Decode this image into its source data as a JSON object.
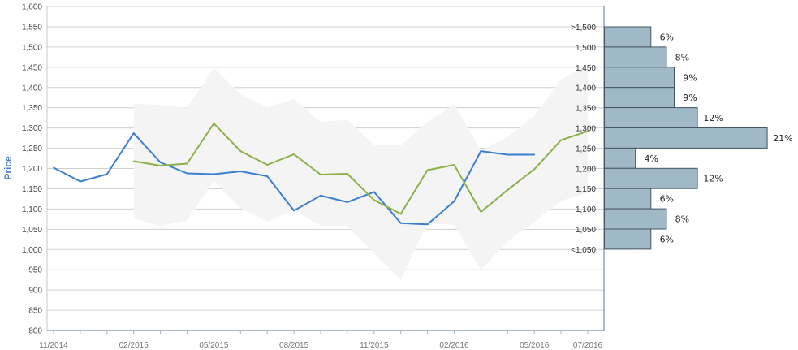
{
  "chart_data": {
    "type": "line",
    "ylabel": "Price",
    "ylim": [
      800,
      1600
    ],
    "y_ticks": [
      "800",
      "850",
      "900",
      "950",
      "1,000",
      "1,050",
      "1,100",
      "1,150",
      "1,200",
      "1,250",
      "1,300",
      "1,350",
      "1,400",
      "1,450",
      "1,500",
      "1,550",
      "1,600"
    ],
    "x_ticks": [
      "11/2014",
      "02/2015",
      "05/2015",
      "08/2015",
      "11/2015",
      "02/2016",
      "05/2016",
      "07/2016"
    ],
    "grid": true,
    "series": [
      {
        "key": "actual",
        "color": "#3a7fd0",
        "x": [
          "11/2014",
          "12/2014",
          "01/2015",
          "02/2015",
          "03/2015",
          "04/2015",
          "05/2015",
          "06/2015",
          "07/2015",
          "08/2015",
          "09/2015",
          "10/2015",
          "11/2015",
          "12/2015",
          "01/2016",
          "02/2016",
          "03/2016",
          "04/2016",
          "05/2016"
        ],
        "values": [
          1202,
          1168,
          1186,
          1287,
          1215,
          1188,
          1186,
          1193,
          1181,
          1096,
          1133,
          1117,
          1142,
          1065,
          1062,
          1119,
          1243,
          1234,
          1234
        ]
      },
      {
        "key": "forecast",
        "color": "#8bb04a",
        "x": [
          "02/2015",
          "03/2015",
          "04/2015",
          "05/2015",
          "06/2015",
          "07/2015",
          "08/2015",
          "09/2015",
          "10/2015",
          "11/2015",
          "12/2015",
          "01/2016",
          "02/2016",
          "03/2016",
          "04/2016",
          "05/2016",
          "06/2016",
          "07/2016"
        ],
        "values": [
          1218,
          1207,
          1212,
          1311,
          1243,
          1209,
          1235,
          1185,
          1187,
          1122,
          1088,
          1196,
          1209,
          1093,
          1147,
          1198,
          1270,
          1292
        ]
      }
    ],
    "band": {
      "color": "#f4f4f4",
      "x": [
        "02/2015",
        "03/2015",
        "04/2015",
        "05/2015",
        "06/2015",
        "07/2015",
        "08/2015",
        "09/2015",
        "10/2015",
        "11/2015",
        "12/2015",
        "01/2016",
        "02/2016",
        "03/2016",
        "04/2016",
        "05/2016",
        "06/2016",
        "07/2016"
      ],
      "upper": [
        1360,
        1357,
        1350,
        1448,
        1384,
        1351,
        1372,
        1315,
        1320,
        1257,
        1257,
        1315,
        1358,
        1245,
        1278,
        1330,
        1420,
        1455
      ],
      "lower": [
        1076,
        1058,
        1072,
        1170,
        1102,
        1068,
        1099,
        1058,
        1058,
        990,
        925,
        1066,
        1060,
        950,
        1020,
        1068,
        1120,
        1140
      ]
    },
    "distribution": {
      "color": "#a0b9c6",
      "border": "#445566",
      "buckets": [
        {
          "label": ">1,500",
          "pct": "6%",
          "value": 6
        },
        {
          "label": "1,500",
          "pct": "8%",
          "value": 8
        },
        {
          "label": "1,450",
          "pct": "9%",
          "value": 9
        },
        {
          "label": "1,400",
          "pct": "9%",
          "value": 9
        },
        {
          "label": "1,350",
          "pct": "12%",
          "value": 12
        },
        {
          "label": "1,300",
          "pct": "21%",
          "value": 21
        },
        {
          "label": "1,250",
          "pct": "4%",
          "value": 4
        },
        {
          "label": "1,200",
          "pct": "12%",
          "value": 12
        },
        {
          "label": "1,150",
          "pct": "6%",
          "value": 6
        },
        {
          "label": "1,100",
          "pct": "8%",
          "value": 8
        },
        {
          "label": "1,050",
          "pct": "6%",
          "value": 6
        }
      ],
      "bottom_label": "<1,050"
    }
  }
}
